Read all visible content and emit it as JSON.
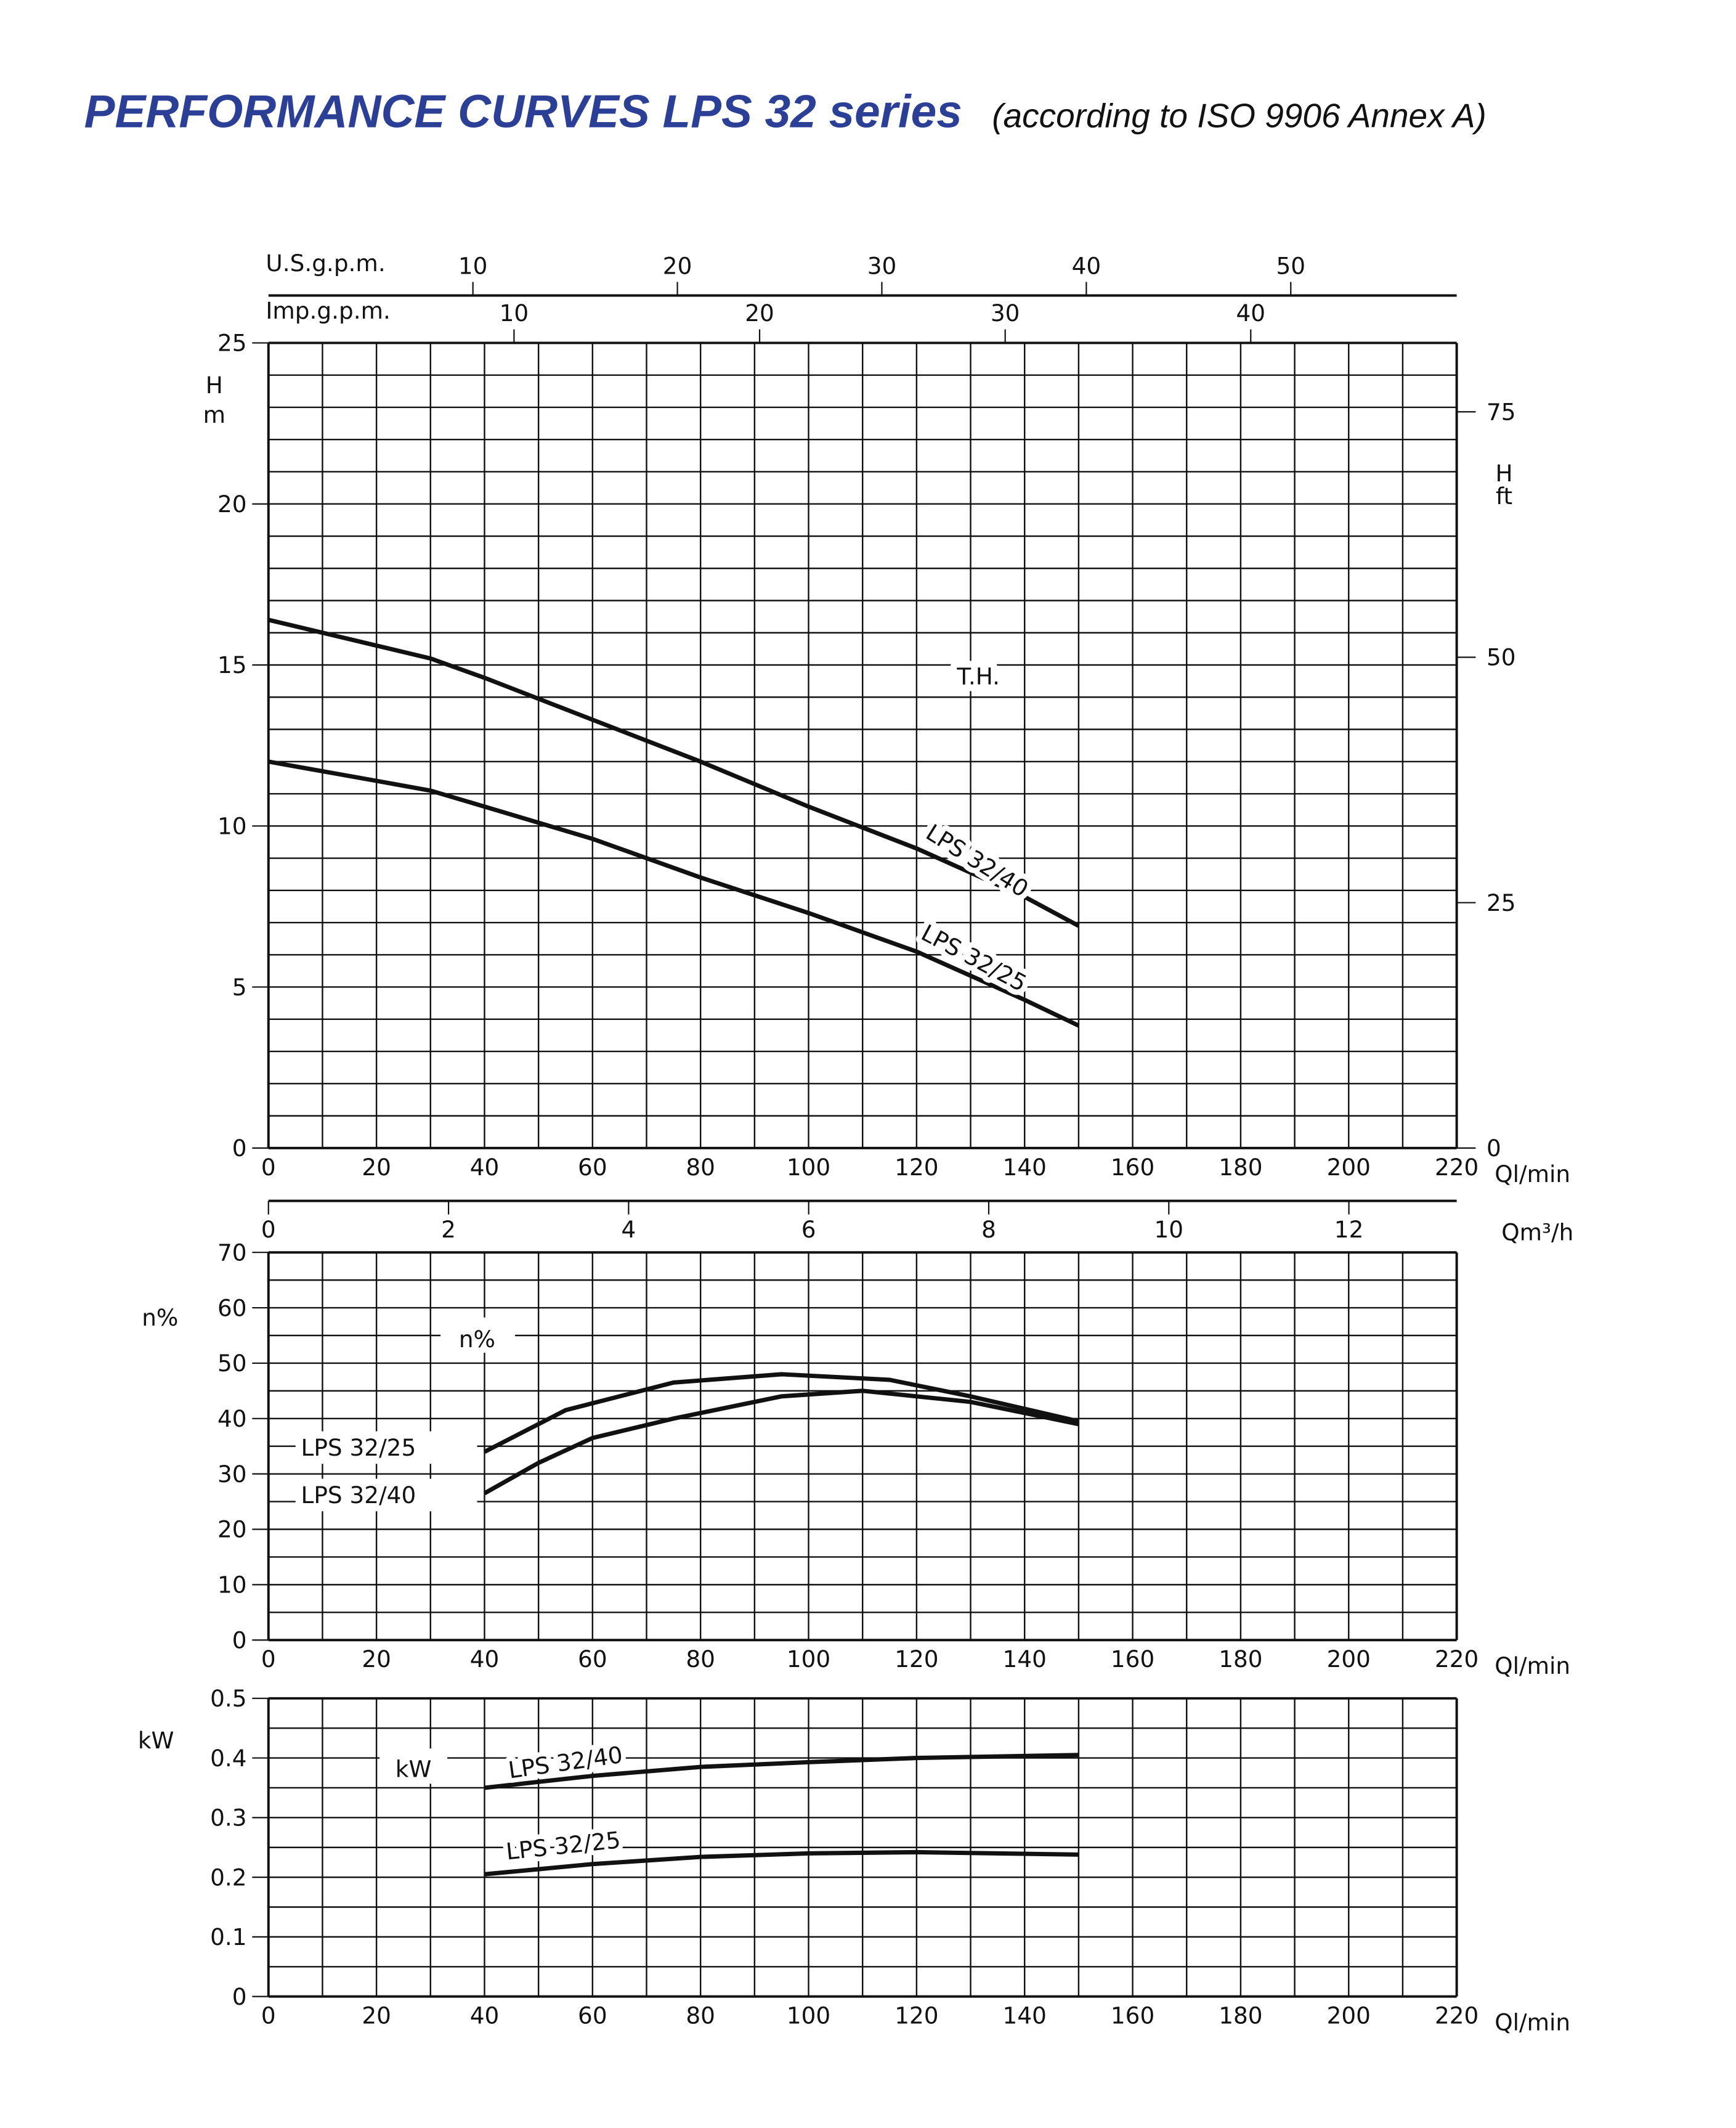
{
  "title": "PERFORMANCE CURVES LPS 32 series",
  "subtitle": "(according to ISO 9906 Annex A)",
  "colors": {
    "title": "#2b3f96",
    "ink": "#111111"
  },
  "chart_data": [
    {
      "type": "line",
      "title": "T.H.",
      "xlabel": "Ql/min",
      "ylabel": "H m",
      "y2label": "H ft",
      "xlim": [
        0,
        220
      ],
      "ylim": [
        0,
        25
      ],
      "grid": true,
      "xticks": [
        0,
        20,
        40,
        60,
        80,
        100,
        120,
        140,
        160,
        180,
        200,
        220
      ],
      "yticks": [
        0,
        5,
        10,
        15,
        20,
        25
      ],
      "y2ticks": [
        0,
        25,
        50,
        75
      ],
      "top_axes": [
        {
          "label": "U.S.g.p.m.",
          "ticks": [
            10,
            20,
            30,
            40,
            50
          ],
          "lpm_per_unit": 3.785
        },
        {
          "label": "Imp.g.p.m.",
          "ticks": [
            10,
            20,
            30,
            40
          ],
          "lpm_per_unit": 4.546
        }
      ],
      "x": [
        0,
        20,
        30,
        40,
        60,
        80,
        100,
        120,
        140,
        150
      ],
      "series": [
        {
          "name": "LPS 32/40",
          "values": [
            16.4,
            15.6,
            15.2,
            14.6,
            13.3,
            12.0,
            10.6,
            9.3,
            7.8,
            6.9
          ]
        },
        {
          "name": "LPS 32/25",
          "values": [
            12.0,
            11.4,
            11.1,
            10.6,
            9.6,
            8.4,
            7.3,
            6.1,
            4.6,
            3.8
          ]
        }
      ]
    },
    {
      "type": "line",
      "title": "n%",
      "xlabel": "Ql/min",
      "ylabel": "n%",
      "xlim": [
        0,
        220
      ],
      "ylim": [
        0,
        70
      ],
      "grid": true,
      "flow_axis": {
        "label": "Qm³/h",
        "ticks": [
          0,
          2,
          4,
          6,
          8,
          10,
          12
        ],
        "lpm_per_unit": 16.667
      },
      "xticks": [
        0,
        20,
        40,
        60,
        80,
        100,
        120,
        140,
        160,
        180,
        200,
        220
      ],
      "yticks": [
        0,
        10,
        20,
        30,
        40,
        50,
        60,
        70
      ],
      "series": [
        {
          "name": "LPS 32/25",
          "x": [
            40,
            55,
            75,
            95,
            115,
            130,
            150
          ],
          "values": [
            34,
            41.5,
            46.5,
            48,
            47,
            44,
            39.5
          ]
        },
        {
          "name": "LPS 32/40",
          "x": [
            40,
            50,
            60,
            75,
            95,
            110,
            130,
            150
          ],
          "values": [
            26.5,
            32,
            36.5,
            40,
            44,
            45,
            43,
            39
          ]
        }
      ]
    },
    {
      "type": "line",
      "title": "kW",
      "xlabel": "Ql/min",
      "ylabel": "kW",
      "xlim": [
        0,
        220
      ],
      "ylim": [
        0,
        0.5
      ],
      "grid": true,
      "xticks": [
        0,
        20,
        40,
        60,
        80,
        100,
        120,
        140,
        160,
        180,
        200,
        220
      ],
      "yticks": [
        "0",
        "0.1",
        "0.2",
        "0.3",
        "0.4",
        "0.5"
      ],
      "series": [
        {
          "name": "LPS 32/40",
          "x": [
            40,
            60,
            80,
            100,
            120,
            150
          ],
          "values": [
            0.35,
            0.37,
            0.385,
            0.393,
            0.4,
            0.405
          ]
        },
        {
          "name": "LPS 32/25",
          "x": [
            40,
            60,
            80,
            100,
            120,
            150
          ],
          "values": [
            0.205,
            0.222,
            0.234,
            0.24,
            0.242,
            0.238
          ]
        }
      ]
    }
  ]
}
